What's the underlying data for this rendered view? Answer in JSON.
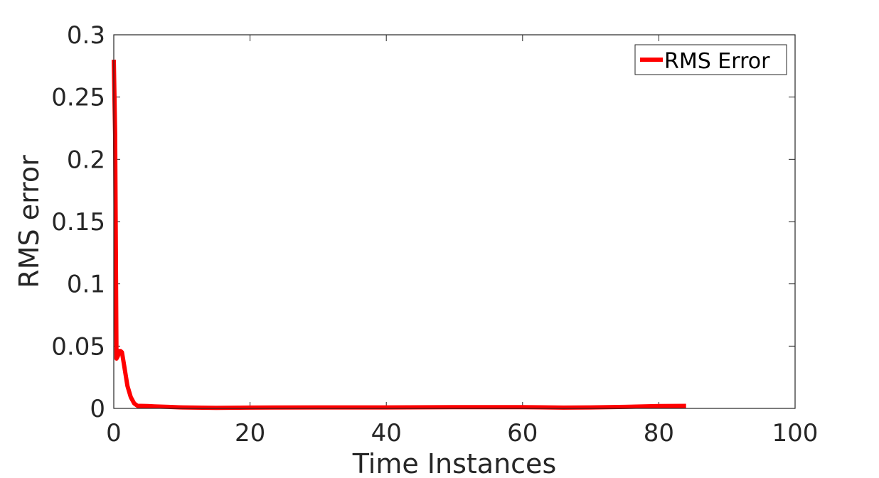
{
  "chart_data": {
    "type": "line",
    "title": "",
    "xlabel": "Time Instances",
    "ylabel": "RMS error",
    "xlim": [
      0,
      100
    ],
    "ylim": [
      0,
      0.3
    ],
    "xticks": [
      0,
      20,
      40,
      60,
      80,
      100
    ],
    "xtick_labels": [
      "0",
      "20",
      "40",
      "60",
      "80",
      "100"
    ],
    "yticks": [
      0,
      0.05,
      0.1,
      0.15,
      0.2,
      0.25,
      0.3
    ],
    "ytick_labels": [
      "0",
      "0.05",
      "0.1",
      "0.15",
      "0.2",
      "0.25",
      "0.3"
    ],
    "grid": false,
    "legend_position": "top-right",
    "series": [
      {
        "name": "RMS Error",
        "color": "#ff0000",
        "x": [
          0,
          0.2,
          0.4,
          0.6,
          0.8,
          1.0,
          1.2,
          1.5,
          2.0,
          2.5,
          3.0,
          3.5,
          4.0,
          5.0,
          6.0,
          8.0,
          10.0,
          15.0,
          20.0,
          30.0,
          40.0,
          50.0,
          60.0,
          66.0,
          70.0,
          75.0,
          80.0,
          84.0
        ],
        "y": [
          0.28,
          0.22,
          0.04,
          0.042,
          0.046,
          0.046,
          0.045,
          0.035,
          0.018,
          0.009,
          0.004,
          0.002,
          0.002,
          0.0018,
          0.0016,
          0.0012,
          0.0008,
          0.0004,
          0.0006,
          0.0008,
          0.0008,
          0.001,
          0.001,
          0.0006,
          0.0008,
          0.0012,
          0.0018,
          0.002
        ]
      }
    ]
  }
}
